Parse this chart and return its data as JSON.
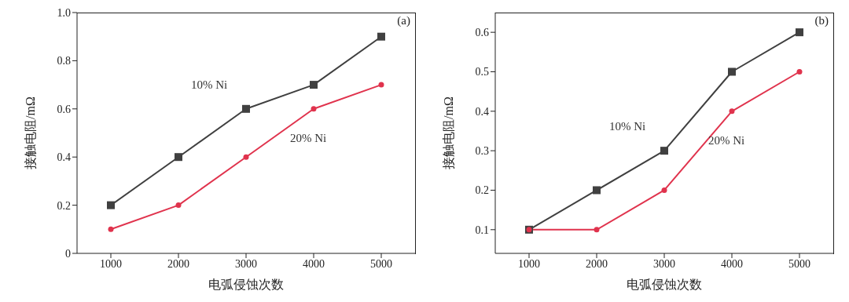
{
  "chart_data": [
    {
      "type": "line",
      "xlabel": "电弧侵蚀次数",
      "ylabel": "接触电阻/mΩ",
      "annotations": [
        "(a)"
      ],
      "x": [
        1000,
        2000,
        3000,
        4000,
        5000
      ],
      "xlim": [
        500,
        5500
      ],
      "xticks": [
        1000,
        2000,
        3000,
        4000,
        5000
      ],
      "ylim": [
        0,
        1.0
      ],
      "yticks": [
        0,
        0.2,
        0.4,
        0.6,
        0.8,
        {
          "value": 1.0,
          "label": "1.0"
        }
      ],
      "grid": false,
      "legend": false,
      "line_style": "solid",
      "series": [
        {
          "name": "10% Ni",
          "color": "#404040",
          "marker": "square",
          "values": [
            0.2,
            0.4,
            0.6,
            0.7,
            0.9
          ]
        },
        {
          "name": "20% Ni",
          "color": "#e0334d",
          "marker": "circle",
          "values": [
            0.1,
            0.2,
            0.4,
            0.6,
            0.7
          ]
        }
      ]
    },
    {
      "type": "line",
      "xlabel": "电弧侵蚀次数",
      "ylabel": "接触电阻/mΩ",
      "annotations": [
        "(b)"
      ],
      "x": [
        1000,
        2000,
        3000,
        4000,
        5000
      ],
      "xlim": [
        500,
        5500
      ],
      "xticks": [
        1000,
        2000,
        3000,
        4000,
        5000
      ],
      "ylim": [
        0.04,
        0.65
      ],
      "yticks": [
        0.1,
        0.2,
        0.3,
        0.4,
        0.5,
        0.6
      ],
      "grid": false,
      "legend": false,
      "line_style": "solid",
      "series": [
        {
          "name": "10% Ni",
          "color": "#404040",
          "marker": "square",
          "values": [
            0.1,
            0.2,
            0.3,
            0.5,
            0.6
          ]
        },
        {
          "name": "20% Ni",
          "color": "#e0334d",
          "marker": "circle",
          "values": [
            0.1,
            0.1,
            0.2,
            0.4,
            0.5
          ]
        }
      ]
    }
  ]
}
